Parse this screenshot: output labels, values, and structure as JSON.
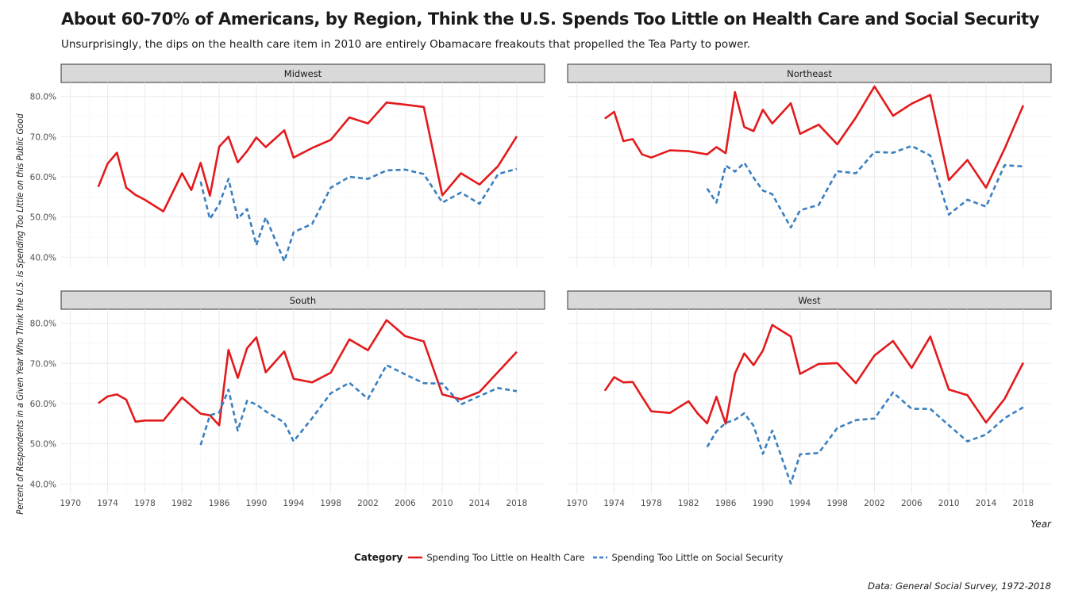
{
  "title": "About 60-70% of Americans, by Region, Think the U.S. Spends Too Little on Health Care and Social Security",
  "subtitle": "Unsurprisingly, the dips on the health care item in 2010 are entirely Obamacare freakouts that propelled the Tea Party to power.",
  "caption": "Data: General Social Survey, 1972-2018",
  "colors": {
    "health": "#e31a1c",
    "social": "#3a7fc0",
    "strip": "#d9d9d9",
    "grid_major": "#ebebeb",
    "grid_minor": "#f5f5f5"
  },
  "legend": {
    "title": "Category",
    "items": [
      {
        "label": "Spending Too Little on Health Care",
        "linetype": "solid",
        "color": "#e31a1c"
      },
      {
        "label": "Spending Too Little on Social Security",
        "linetype": "dashed",
        "color": "#3a7fc0"
      }
    ]
  },
  "chart_data": {
    "type": "line",
    "facet_by": "Region",
    "xlabel": "Year",
    "ylabel": "Percent of Respondents in a Given Year Who Think the U.S. is Spending Too Little on this Public Good",
    "xlim": [
      1969,
      2021
    ],
    "ylim": [
      37.5,
      83.5
    ],
    "x_ticks": [
      1970,
      1974,
      1978,
      1982,
      1986,
      1990,
      1994,
      1998,
      2002,
      2006,
      2010,
      2014,
      2018
    ],
    "y_ticks": [
      40,
      50,
      60,
      70,
      80
    ],
    "y_tick_labels": [
      "40.0%",
      "50.0%",
      "60.0%",
      "70.0%",
      "80.0%"
    ],
    "grid": true,
    "legend_position": "bottom",
    "panels": [
      {
        "name": "Midwest",
        "series": [
          {
            "name": "Spending Too Little on Health Care",
            "x": [
              1973,
              1974,
              1975,
              1976,
              1977,
              1978,
              1980,
              1982,
              1983,
              1984,
              1985,
              1986,
              1987,
              1988,
              1989,
              1990,
              1991,
              1993,
              1994,
              1996,
              1998,
              2000,
              2002,
              2004,
              2006,
              2008,
              2010,
              2012,
              2014,
              2016,
              2018
            ],
            "y": [
              57.5,
              63.3,
              66.0,
              57.3,
              55.5,
              54.3,
              51.4,
              60.9,
              56.7,
              63.5,
              55.3,
              67.5,
              70.0,
              63.6,
              66.4,
              69.8,
              67.4,
              71.6,
              64.8,
              67.2,
              69.2,
              74.8,
              73.3,
              78.5,
              78.0,
              77.4,
              55.4,
              60.9,
              58.1,
              62.7,
              70.1
            ]
          },
          {
            "name": "Spending Too Little on Social Security",
            "x": [
              1984,
              1985,
              1986,
              1987,
              1988,
              1989,
              1990,
              1991,
              1993,
              1994,
              1996,
              1998,
              2000,
              2002,
              2004,
              2006,
              2008,
              2010,
              2012,
              2014,
              2016,
              2018
            ],
            "y": [
              58.8,
              49.5,
              53.2,
              59.5,
              49.6,
              52.0,
              43.0,
              49.9,
              39.0,
              46.2,
              48.3,
              57.3,
              60.0,
              59.5,
              61.6,
              61.8,
              60.7,
              53.6,
              56.1,
              53.3,
              60.7,
              62.0
            ]
          }
        ]
      },
      {
        "name": "Northeast",
        "series": [
          {
            "name": "Spending Too Little on Health Care",
            "x": [
              1973,
              1974,
              1975,
              1976,
              1977,
              1978,
              1980,
              1982,
              1984,
              1985,
              1986,
              1987,
              1988,
              1989,
              1990,
              1991,
              1993,
              1994,
              1996,
              1998,
              2000,
              2002,
              2004,
              2006,
              2008,
              2010,
              2012,
              2014,
              2016,
              2018
            ],
            "y": [
              74.5,
              76.2,
              68.9,
              69.4,
              65.6,
              64.8,
              66.6,
              66.4,
              65.6,
              67.4,
              65.9,
              81.1,
              72.4,
              71.4,
              76.7,
              73.3,
              78.3,
              70.7,
              73.0,
              68.1,
              74.8,
              82.5,
              75.2,
              78.2,
              80.4,
              59.2,
              64.2,
              57.3,
              67.0,
              77.8
            ]
          },
          {
            "name": "Spending Too Little on Social Security",
            "x": [
              1984,
              1985,
              1986,
              1987,
              1988,
              1989,
              1990,
              1991,
              1993,
              1994,
              1996,
              1998,
              2000,
              2002,
              2004,
              2006,
              2008,
              2010,
              2012,
              2014,
              2016,
              2018
            ],
            "y": [
              57.1,
              53.6,
              62.8,
              61.3,
              63.5,
              59.8,
              56.6,
              55.7,
              47.4,
              51.7,
              53.0,
              61.4,
              60.9,
              66.2,
              66.0,
              67.7,
              65.3,
              50.6,
              54.3,
              52.6,
              62.9,
              62.6
            ]
          }
        ]
      },
      {
        "name": "South",
        "series": [
          {
            "name": "Spending Too Little on Health Care",
            "x": [
              1973,
              1974,
              1975,
              1976,
              1977,
              1978,
              1980,
              1982,
              1984,
              1985,
              1986,
              1987,
              1988,
              1989,
              1990,
              1991,
              1993,
              1994,
              1996,
              1998,
              2000,
              2002,
              2004,
              2006,
              2008,
              2010,
              2012,
              2014,
              2016,
              2018
            ],
            "y": [
              60.1,
              61.8,
              62.3,
              61.0,
              55.5,
              55.8,
              55.8,
              61.5,
              57.5,
              57.1,
              54.6,
              73.4,
              66.4,
              73.8,
              76.5,
              67.8,
              73.0,
              66.2,
              65.3,
              67.7,
              76.0,
              73.3,
              80.8,
              76.8,
              75.5,
              62.3,
              61.1,
              62.9,
              67.9,
              72.9
            ]
          },
          {
            "name": "Spending Too Little on Social Security",
            "x": [
              1984,
              1985,
              1986,
              1987,
              1988,
              1989,
              1990,
              1991,
              1993,
              1994,
              1996,
              1998,
              2000,
              2002,
              2004,
              2006,
              2008,
              2010,
              2012,
              2014,
              2016,
              2018
            ],
            "y": [
              49.7,
              57.1,
              57.8,
              63.5,
              53.3,
              60.7,
              59.8,
              58.1,
              55.3,
              50.6,
              56.4,
              62.6,
              65.2,
              61.2,
              69.6,
              67.3,
              65.1,
              65.0,
              59.8,
              61.9,
              63.9,
              63.1
            ]
          }
        ]
      },
      {
        "name": "West",
        "series": [
          {
            "name": "Spending Too Little on Health Care",
            "x": [
              1973,
              1974,
              1975,
              1976,
              1977,
              1978,
              1980,
              1982,
              1983,
              1984,
              1985,
              1986,
              1987,
              1988,
              1989,
              1990,
              1991,
              1993,
              1994,
              1996,
              1998,
              2000,
              2002,
              2004,
              2006,
              2008,
              2010,
              2012,
              2014,
              2016,
              2018
            ],
            "y": [
              63.2,
              66.6,
              65.3,
              65.4,
              61.7,
              58.1,
              57.7,
              60.6,
              57.5,
              55.1,
              61.7,
              55.0,
              67.5,
              72.5,
              69.6,
              73.2,
              79.6,
              76.7,
              67.4,
              69.9,
              70.1,
              65.1,
              72.0,
              75.6,
              68.9,
              76.7,
              63.5,
              62.1,
              55.3,
              61.2,
              70.2
            ]
          },
          {
            "name": "Spending Too Little on Social Security",
            "x": [
              1984,
              1985,
              1986,
              1987,
              1988,
              1989,
              1990,
              1991,
              1993,
              1994,
              1996,
              1998,
              2000,
              2002,
              2004,
              2006,
              2008,
              2010,
              2012,
              2014,
              2016,
              2018
            ],
            "y": [
              49.2,
              53.1,
              55.2,
              56.0,
              57.6,
              54.5,
              47.5,
              53.3,
              40.1,
              47.4,
              47.7,
              53.9,
              55.9,
              56.3,
              62.8,
              58.7,
              58.7,
              54.6,
              50.6,
              52.3,
              56.4,
              59.1
            ]
          }
        ]
      }
    ]
  }
}
